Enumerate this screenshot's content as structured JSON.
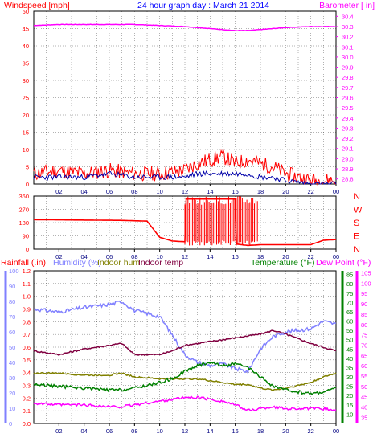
{
  "chart_data": [
    {
      "type": "line",
      "title": "24 hour graph day : March 21 2014",
      "ylabel_left": "Windspeed [mph]",
      "ylabel_right": "Barometer [ in]",
      "ylim_left": [
        0,
        50
      ],
      "ylim_right": [
        28.75,
        30.45
      ],
      "yticks_left": [
        0,
        5,
        10,
        15,
        20,
        25,
        30,
        35,
        40,
        45,
        50
      ],
      "yticks_right": [
        28.8,
        28.9,
        29.0,
        29.1,
        29.2,
        29.3,
        29.4,
        29.5,
        29.6,
        29.7,
        29.8,
        29.9,
        30.0,
        30.1,
        30.2,
        30.3,
        30.4
      ],
      "x": [
        0,
        2,
        4,
        6,
        8,
        10,
        12,
        13,
        14,
        15,
        16,
        17,
        18,
        19,
        20,
        22,
        24
      ],
      "series": [
        {
          "name": "Barometer",
          "axis": "right",
          "color": "#ff00ff",
          "values": [
            30.31,
            30.32,
            30.32,
            30.32,
            30.32,
            30.31,
            30.3,
            30.29,
            30.28,
            30.27,
            30.26,
            30.26,
            30.27,
            30.28,
            30.29,
            30.3,
            30.3
          ]
        },
        {
          "name": "Wind gust",
          "axis": "left",
          "color": "#ff0000",
          "values": [
            3,
            4,
            3,
            4,
            3,
            3,
            4,
            6,
            7,
            8,
            6,
            7,
            6,
            5,
            3,
            1,
            1
          ]
        },
        {
          "name": "Wind speed",
          "axis": "left",
          "color": "#0000aa",
          "values": [
            2,
            2,
            2,
            3,
            2,
            2,
            2,
            3,
            3,
            3,
            3,
            3,
            2,
            2,
            1,
            0,
            0
          ]
        }
      ],
      "xticks": [
        "02",
        "04",
        "06",
        "08",
        "10",
        "12",
        "14",
        "16",
        "18",
        "20",
        "22",
        "00"
      ],
      "grid": true
    },
    {
      "type": "line",
      "ylim": [
        0,
        360
      ],
      "yticks": [
        0,
        90,
        180,
        270,
        360
      ],
      "ylabel_right_letters": [
        "N",
        "W",
        "S",
        "E",
        "N"
      ],
      "x": [
        0,
        7,
        9,
        10,
        11,
        12,
        13,
        16,
        17,
        18,
        22,
        23,
        24
      ],
      "series": [
        {
          "name": "Wind direction",
          "color": "#ff0000",
          "values": [
            200,
            195,
            190,
            80,
            55,
            50,
            340,
            35,
            25,
            30,
            30,
            60,
            65
          ]
        }
      ],
      "xticks": [
        "02",
        "04",
        "06",
        "08",
        "10",
        "12",
        "14",
        "16",
        "18",
        "20",
        "22",
        "00"
      ],
      "grid": true
    },
    {
      "type": "line",
      "labels": {
        "rain": "Rainfall (.in)",
        "humidity": "Humidity (%)",
        "indoor_hum": "Indoor hum",
        "indoor_temp": "Indoor temp",
        "temperature": "Temperature (°F)",
        "dew_point": "Dew Point (°F)"
      },
      "axis_rain": {
        "ylim": [
          0,
          1.2
        ],
        "ticks": [
          0,
          0.1,
          0.2,
          0.3,
          0.4,
          0.5,
          0.6,
          0.7,
          0.8,
          0.9,
          1.0,
          1.1,
          1.2
        ]
      },
      "axis_humidity": {
        "ylim": [
          0,
          100
        ],
        "ticks": [
          0,
          10,
          20,
          30,
          40,
          50,
          60,
          70,
          80,
          90,
          100
        ]
      },
      "axis_temperature": {
        "ylim": [
          5,
          87
        ],
        "ticks": [
          10,
          15,
          20,
          25,
          30,
          35,
          40,
          45,
          50,
          55,
          60,
          65,
          70,
          75,
          80,
          85
        ]
      },
      "axis_dewpoint": {
        "ylim": [
          32,
          106
        ],
        "ticks": [
          35,
          40,
          45,
          50,
          55,
          60,
          65,
          70,
          75,
          80,
          85,
          90,
          95,
          100,
          105
        ]
      },
      "x": [
        0,
        2,
        4,
        6,
        7,
        8,
        10,
        11,
        12,
        13,
        14,
        15,
        16,
        17,
        18,
        19,
        20,
        22,
        23,
        24
      ],
      "series": [
        {
          "name": "Humidity (%)",
          "axis": "humidity",
          "color": "#8080ff",
          "values": [
            75,
            73,
            76,
            78,
            80,
            74,
            70,
            58,
            45,
            40,
            38,
            39,
            36,
            34,
            49,
            57,
            60,
            62,
            67,
            65
          ]
        },
        {
          "name": "Indoor temp",
          "axis": "temperature",
          "color": "#800040",
          "values": [
            44,
            42,
            45,
            47,
            48,
            42,
            42,
            44,
            47,
            48,
            49,
            50,
            51,
            52,
            53,
            55,
            53,
            48,
            46,
            44
          ]
        },
        {
          "name": "Indoor hum",
          "axis": "temperature",
          "color": "#808000",
          "values": [
            32,
            32,
            31,
            31,
            32,
            30,
            29,
            29,
            29,
            29,
            28,
            27,
            26,
            26,
            24,
            23,
            24,
            27,
            30,
            32
          ]
        },
        {
          "name": "Temperature (°F)",
          "axis": "temperature",
          "color": "#008000",
          "values": [
            26,
            25,
            24,
            23,
            23,
            24,
            27,
            29,
            33,
            36,
            38,
            36,
            37,
            35,
            30,
            25,
            23,
            21,
            22,
            24
          ]
        },
        {
          "name": "Dew Point (°F)",
          "axis": "temperature",
          "color": "#ff00ff",
          "values": [
            16,
            15,
            15,
            14,
            14,
            15,
            17,
            18,
            19,
            19,
            18,
            17,
            15,
            12,
            13,
            14,
            13,
            13,
            13,
            12
          ]
        }
      ],
      "xticks": [
        "02",
        "04",
        "06",
        "08",
        "10",
        "12",
        "14",
        "16",
        "18",
        "20",
        "22",
        "00"
      ],
      "grid": true
    }
  ],
  "colors": {
    "wind": "#ff0000",
    "windavg": "#0000aa",
    "baro": "#ff00ff",
    "humidity": "#8080ff",
    "indoor_hum": "#808000",
    "indoor_temp": "#800040",
    "temperature": "#008000",
    "dew_point": "#ff00ff",
    "grid": "#000000"
  }
}
